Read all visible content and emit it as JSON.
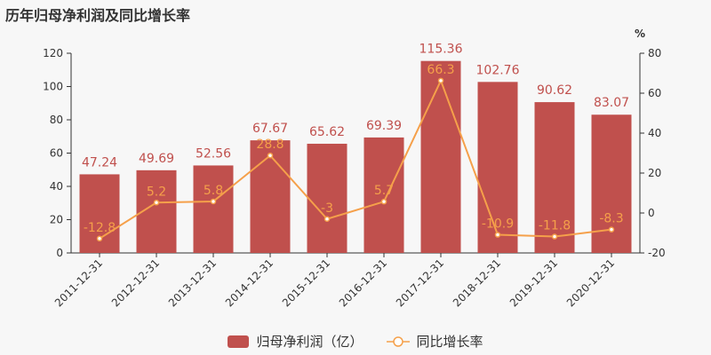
{
  "title": "历年归母净利润及同比增长率",
  "chart_data": {
    "type": "bar+line",
    "categories": [
      "2011-12-31",
      "2012-12-31",
      "2013-12-31",
      "2014-12-31",
      "2015-12-31",
      "2016-12-31",
      "2017-12-31",
      "2018-12-31",
      "2019-12-31",
      "2020-12-31"
    ],
    "series": [
      {
        "name": "归母净利润（亿）",
        "type": "bar",
        "axis": "left",
        "color": "#c0504d",
        "values": [
          47.24,
          49.69,
          52.56,
          67.67,
          65.62,
          69.39,
          115.36,
          102.76,
          90.62,
          83.07
        ],
        "labels": [
          "47.24",
          "49.69",
          "52.56",
          "67.67",
          "65.62",
          "69.39",
          "115.36",
          "102.76",
          "90.62",
          "83.07"
        ]
      },
      {
        "name": "同比增长率",
        "type": "line",
        "axis": "right",
        "color": "#f5a04a",
        "values": [
          -12.8,
          5.2,
          5.8,
          28.8,
          -3,
          5.7,
          66.3,
          -10.9,
          -11.8,
          -8.3
        ],
        "labels": [
          "-12.8",
          "5.2",
          "5.8",
          "28.8",
          "-3",
          "5.7",
          "66.3",
          "-10.9",
          "-11.8",
          "-8.3"
        ]
      }
    ],
    "y_left": {
      "min": 0,
      "max": 120,
      "ticks": [
        "0",
        "20",
        "40",
        "60",
        "80",
        "100",
        "120"
      ]
    },
    "y_right": {
      "min": -20,
      "max": 80,
      "unit": "%",
      "ticks": [
        "-20",
        "0",
        "20",
        "40",
        "60",
        "80"
      ]
    },
    "grid": false,
    "legend": "bottom-center"
  }
}
